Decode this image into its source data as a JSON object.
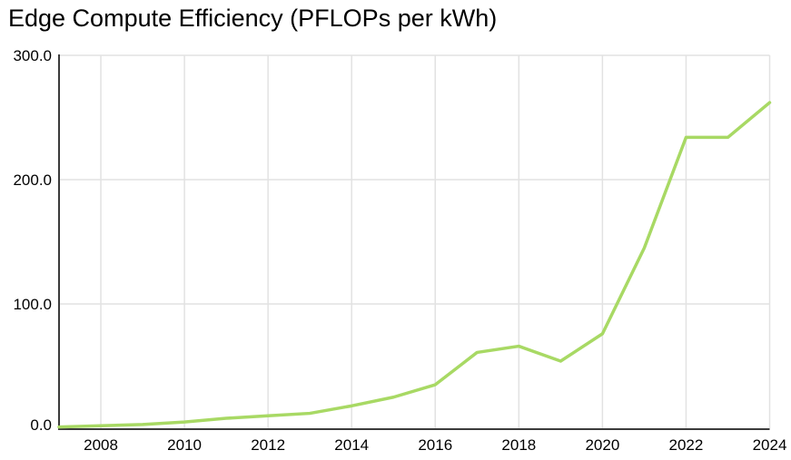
{
  "chart": {
    "title": "Edge Compute Efficiency (PFLOPs per kWh)"
  },
  "chart_data": {
    "type": "line",
    "title": "Edge Compute Efficiency (PFLOPs per kWh)",
    "xlabel": "",
    "ylabel": "",
    "x": [
      2007,
      2008,
      2009,
      2010,
      2011,
      2012,
      2013,
      2014,
      2015,
      2016,
      2017,
      2018,
      2019,
      2020,
      2021,
      2022,
      2023,
      2024
    ],
    "series": [
      {
        "name": "Edge Compute Efficiency (PFLOPs per kWh)",
        "values": [
          1,
          2,
          3,
          5,
          8,
          10,
          12,
          18,
          25,
          35,
          61,
          66,
          54,
          76,
          145,
          234,
          234,
          262
        ]
      }
    ],
    "xlim": [
      2007,
      2024
    ],
    "ylim": [
      0,
      300
    ],
    "x_ticks": [
      2008,
      2010,
      2012,
      2014,
      2016,
      2018,
      2020,
      2022,
      2024
    ],
    "x_tick_labels": [
      "2008",
      "2010",
      "2012",
      "2014",
      "2016",
      "2018",
      "2020",
      "2022",
      "2024"
    ],
    "y_ticks": [
      0,
      100,
      200,
      300
    ],
    "y_tick_labels": [
      "0.0",
      "100.0",
      "200.0",
      "300.0"
    ],
    "grid": true,
    "legend": false,
    "colors": {
      "line": "#a8d964",
      "grid": "#e2e2e2",
      "axis": "#3b3b3b",
      "tick_text": "#000000",
      "background": "#ffffff"
    }
  }
}
